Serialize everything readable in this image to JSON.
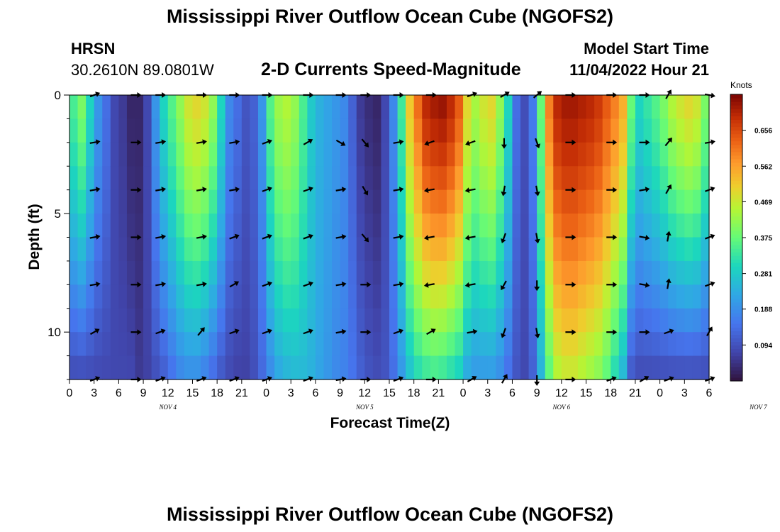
{
  "header": {
    "title": "Mississippi River Outflow Ocean Cube (NGOFS2)",
    "station": "HRSN",
    "coords": "30.2610N  89.0801W",
    "plot_title": "2-D Currents Speed-Magnitude",
    "model_label": "Model Start Time",
    "model_time": "11/04/2022 Hour 21",
    "bottom_title": "Mississippi River Outflow Ocean Cube (NGOFS2)"
  },
  "chart_data": {
    "type": "heatmap",
    "title": "2-D Currents Speed-Magnitude",
    "xlabel": "Forecast Time(Z)",
    "ylabel": "Depth (ft)",
    "x_ticks": [
      "0",
      "3",
      "6",
      "9",
      "12",
      "15",
      "18",
      "21",
      "0",
      "3",
      "6",
      "9",
      "12",
      "15",
      "18",
      "21",
      "0",
      "3",
      "6",
      "9",
      "12",
      "15",
      "18",
      "21",
      "0",
      "3",
      "6"
    ],
    "date_labels": [
      {
        "label": "NOV 4",
        "hour": 12
      },
      {
        "label": "NOV 5",
        "hour": 36
      },
      {
        "label": "NOV 6",
        "hour": 60
      },
      {
        "label": "NOV 7",
        "hour": 84
      }
    ],
    "xlim": [
      0,
      78
    ],
    "y_ticks": [
      "0",
      "5",
      "10"
    ],
    "y_tick_values": [
      0,
      5,
      10
    ],
    "ylim": [
      0,
      12
    ],
    "colorbar": {
      "units": "Knots",
      "ticks": [
        "0.094",
        "0.188",
        "0.281",
        "0.375",
        "0.469",
        "0.562",
        "0.656"
      ],
      "tick_values": [
        0.094,
        0.188,
        0.281,
        0.375,
        0.469,
        0.562,
        0.656
      ],
      "range": [
        0.0,
        0.75
      ]
    },
    "depths": [
      0,
      1,
      2,
      3,
      4,
      5,
      6,
      7,
      8,
      9,
      10,
      11,
      12
    ],
    "profile_hours": [
      0,
      1,
      2,
      3,
      4,
      5,
      6,
      7,
      8,
      9,
      10,
      11,
      12,
      13,
      14,
      15,
      16,
      17,
      18,
      19,
      20,
      21,
      22,
      23,
      24,
      25,
      26,
      27,
      28,
      29,
      30,
      31,
      32,
      33,
      34,
      35,
      36,
      37,
      38,
      39,
      40,
      41,
      42,
      43,
      44,
      45,
      46,
      47,
      48,
      49,
      50,
      51,
      52,
      53,
      54,
      55,
      56,
      57,
      58,
      59,
      60,
      61,
      62,
      63,
      64,
      65,
      66,
      67,
      68,
      69,
      70,
      71,
      72,
      73,
      74,
      75,
      76,
      77,
      78
    ],
    "profile_surface_speed": [
      0.35,
      0.4,
      0.3,
      0.2,
      0.14,
      0.08,
      0.06,
      0.03,
      0.03,
      0.08,
      0.2,
      0.3,
      0.36,
      0.42,
      0.48,
      0.5,
      0.48,
      0.42,
      0.3,
      0.18,
      0.14,
      0.1,
      0.12,
      0.2,
      0.36,
      0.43,
      0.45,
      0.42,
      0.35,
      0.28,
      0.24,
      0.22,
      0.2,
      0.18,
      0.12,
      0.06,
      0.04,
      0.03,
      0.08,
      0.18,
      0.34,
      0.52,
      0.62,
      0.7,
      0.72,
      0.73,
      0.7,
      0.64,
      0.5,
      0.44,
      0.48,
      0.5,
      0.42,
      0.3,
      0.14,
      0.09,
      0.16,
      0.38,
      0.6,
      0.7,
      0.72,
      0.72,
      0.71,
      0.7,
      0.68,
      0.64,
      0.6,
      0.55,
      0.38,
      0.3,
      0.33,
      0.36,
      0.4,
      0.45,
      0.48,
      0.5,
      0.48,
      0.4,
      0.3
    ],
    "profile_bottom_speed": [
      0.08,
      0.08,
      0.08,
      0.08,
      0.08,
      0.08,
      0.08,
      0.08,
      0.06,
      0.07,
      0.09,
      0.11,
      0.14,
      0.17,
      0.18,
      0.18,
      0.16,
      0.13,
      0.1,
      0.08,
      0.07,
      0.07,
      0.09,
      0.13,
      0.18,
      0.22,
      0.24,
      0.25,
      0.25,
      0.24,
      0.22,
      0.2,
      0.18,
      0.17,
      0.15,
      0.12,
      0.1,
      0.09,
      0.1,
      0.14,
      0.2,
      0.26,
      0.3,
      0.32,
      0.33,
      0.32,
      0.3,
      0.28,
      0.22,
      0.2,
      0.2,
      0.2,
      0.18,
      0.14,
      0.1,
      0.08,
      0.12,
      0.24,
      0.36,
      0.44,
      0.46,
      0.46,
      0.44,
      0.42,
      0.4,
      0.36,
      0.3,
      0.24,
      0.1,
      0.08,
      0.08,
      0.08,
      0.08,
      0.08,
      0.08,
      0.08,
      0.08,
      0.08,
      0.08
    ],
    "vector_rows_depth": [
      0,
      2,
      4,
      6,
      8,
      10,
      12
    ],
    "vector_columns_hour": [
      3,
      8,
      11,
      16,
      20,
      24,
      29,
      33,
      36,
      40,
      44,
      49,
      53,
      57,
      61,
      66,
      70,
      73,
      78
    ],
    "vector_angles_deg": [
      [
        200,
        180,
        180,
        180,
        180,
        180,
        180,
        180,
        180,
        180,
        180,
        200,
        210,
        220,
        180,
        180,
        180,
        240,
        170
      ],
      [
        190,
        180,
        190,
        190,
        190,
        200,
        210,
        150,
        130,
        190,
        20,
        20,
        90,
        110,
        180,
        180,
        180,
        230,
        190
      ],
      [
        190,
        180,
        190,
        190,
        190,
        200,
        200,
        190,
        120,
        190,
        10,
        10,
        80,
        100,
        180,
        180,
        190,
        240,
        200
      ],
      [
        190,
        180,
        190,
        190,
        200,
        200,
        200,
        190,
        130,
        190,
        10,
        10,
        70,
        100,
        180,
        180,
        170,
        260,
        200
      ],
      [
        190,
        180,
        190,
        190,
        210,
        200,
        200,
        190,
        180,
        190,
        10,
        10,
        60,
        90,
        180,
        180,
        170,
        260,
        200
      ],
      [
        210,
        180,
        200,
        230,
        200,
        200,
        200,
        190,
        180,
        200,
        210,
        190,
        70,
        100,
        180,
        180,
        180,
        200,
        240
      ],
      [
        200,
        180,
        200,
        200,
        200,
        200,
        200,
        190,
        180,
        200,
        180,
        210,
        240,
        90,
        180,
        200,
        210,
        200,
        200
      ]
    ]
  }
}
